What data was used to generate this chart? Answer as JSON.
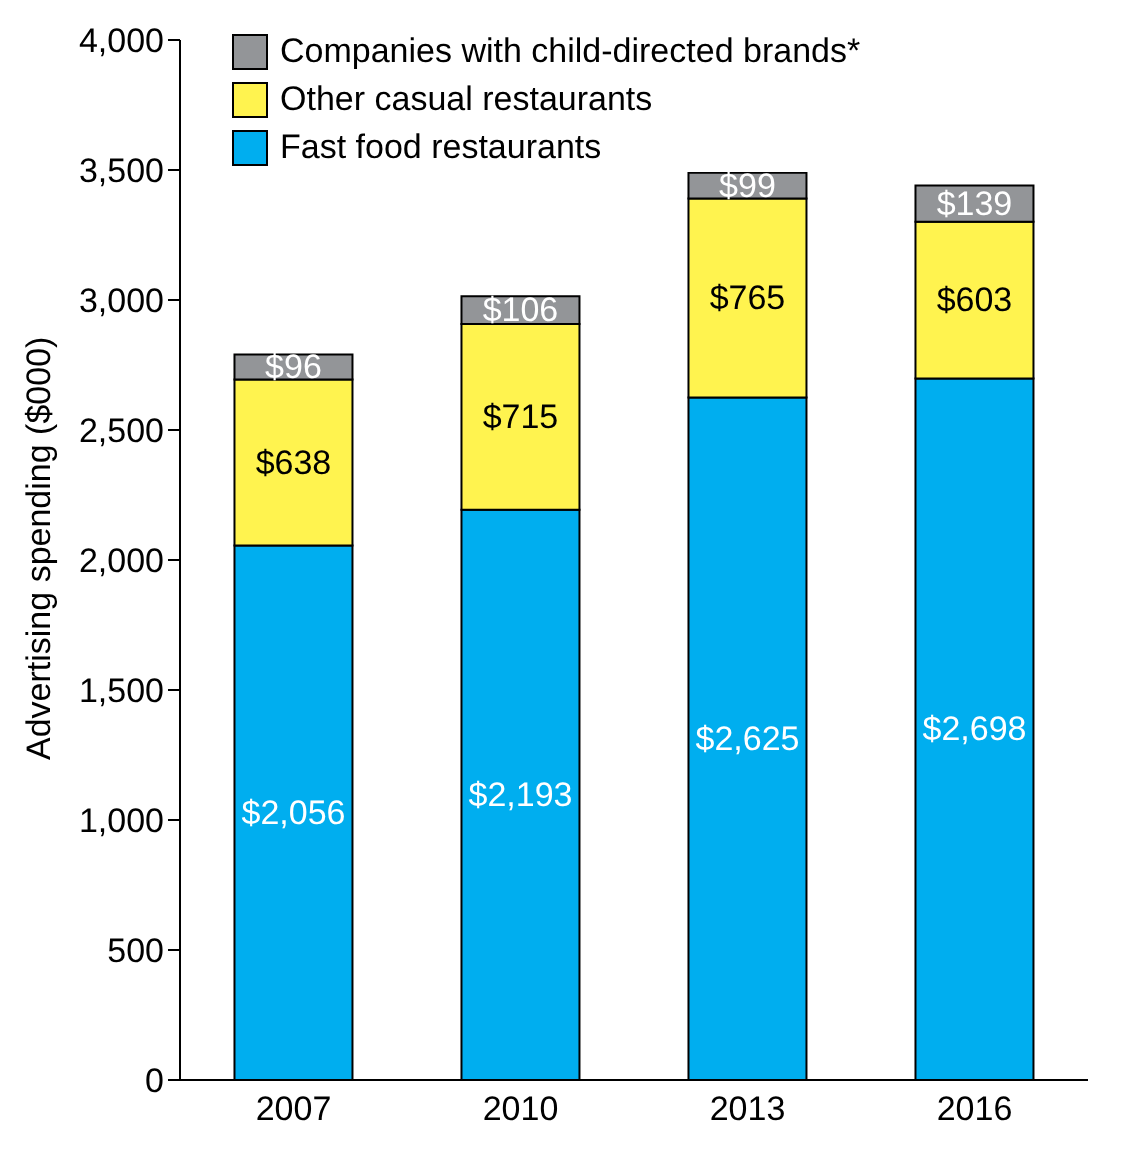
{
  "chart_data": {
    "type": "bar",
    "stacked": true,
    "ylabel": "Advertising spending ($000)",
    "categories": [
      "2007",
      "2010",
      "2013",
      "2016"
    ],
    "series": [
      {
        "name": "Fast food restaurants",
        "color": "#00aeef",
        "values": [
          2056,
          2193,
          2625,
          2698
        ],
        "value_labels": [
          "$2,056",
          "$2,193",
          "$2,625",
          "$2,698"
        ]
      },
      {
        "name": "Other casual restaurants",
        "color": "#fff34f",
        "values": [
          638,
          715,
          765,
          603
        ],
        "value_labels": [
          "$638",
          "$715",
          "$765",
          "$603"
        ]
      },
      {
        "name": "Companies with child-directed brands*",
        "color": "#939598",
        "values": [
          96,
          106,
          99,
          139
        ],
        "value_labels": [
          "$96",
          "$106",
          "$99",
          "$139"
        ]
      }
    ],
    "ylim": [
      0,
      4000
    ],
    "yticks": [
      0,
      {
        "value": 500,
        "label": "500"
      },
      {
        "value": 1000,
        "label": "1,000"
      },
      {
        "value": 1500,
        "label": "1,500"
      },
      {
        "value": 2000,
        "label": "2,000"
      },
      {
        "value": 2500,
        "label": "2,500"
      },
      {
        "value": 3000,
        "label": "3,000"
      },
      {
        "value": 3500,
        "label": "3,500"
      },
      {
        "value": 4000,
        "label": "4,000"
      }
    ],
    "grid": false,
    "legend": "top left"
  }
}
